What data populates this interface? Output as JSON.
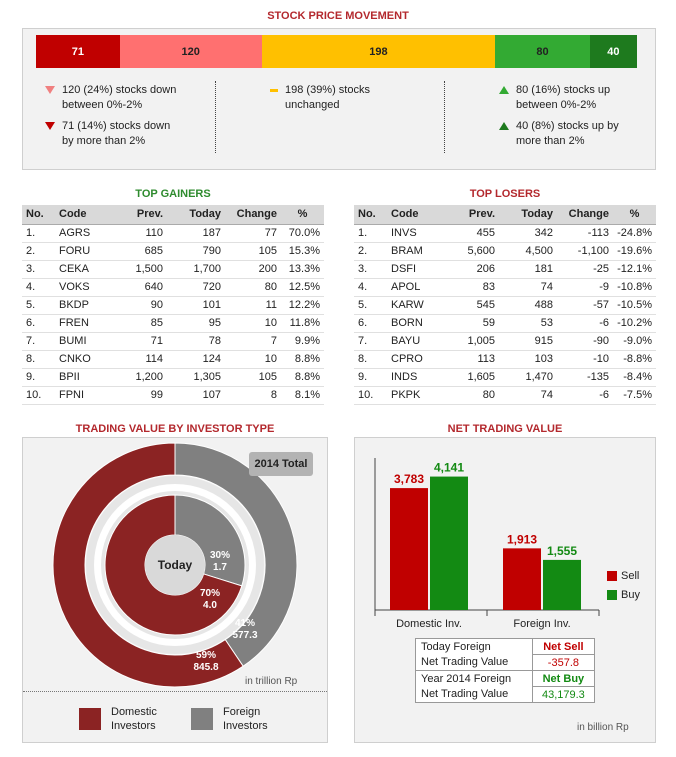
{
  "spm": {
    "title": "STOCK PRICE MOVEMENT",
    "segments": [
      {
        "value": 71,
        "label": "71",
        "color": "#c00000",
        "light": true
      },
      {
        "value": 120,
        "label": "120",
        "color": "#ff7070",
        "light": false
      },
      {
        "value": 198,
        "label": "198",
        "color": "#ffc000",
        "light": false
      },
      {
        "value": 80,
        "label": "80",
        "color": "#33aa33",
        "light": false
      },
      {
        "value": 40,
        "label": "40",
        "color": "#1e7a1e",
        "light": true
      }
    ],
    "down_small_l1": "120 (24%) stocks down",
    "down_small_l2": "between 0%-2%",
    "down_big_l1": "71 (14%) stocks down",
    "down_big_l2": "by more than 2%",
    "unch_l1": "198 (39%) stocks",
    "unch_l2": "unchanged",
    "up_small_l1": "80 (16%) stocks up",
    "up_small_l2": "between 0%-2%",
    "up_big_l1": "40 (8%) stocks up by",
    "up_big_l2": "more than 2%"
  },
  "gainers": {
    "title": "TOP GAINERS",
    "headers": [
      "No.",
      "Code",
      "Prev.",
      "Today",
      "Change",
      "%"
    ],
    "rows": [
      [
        "1.",
        "AGRS",
        "110",
        "187",
        "77",
        "70.0%"
      ],
      [
        "2.",
        "FORU",
        "685",
        "790",
        "105",
        "15.3%"
      ],
      [
        "3.",
        "CEKA",
        "1,500",
        "1,700",
        "200",
        "13.3%"
      ],
      [
        "4.",
        "VOKS",
        "640",
        "720",
        "80",
        "12.5%"
      ],
      [
        "5.",
        "BKDP",
        "90",
        "101",
        "11",
        "12.2%"
      ],
      [
        "6.",
        "FREN",
        "85",
        "95",
        "10",
        "11.8%"
      ],
      [
        "7.",
        "BUMI",
        "71",
        "78",
        "7",
        "9.9%"
      ],
      [
        "8.",
        "CNKO",
        "114",
        "124",
        "10",
        "8.8%"
      ],
      [
        "9.",
        "BPII",
        "1,200",
        "1,305",
        "105",
        "8.8%"
      ],
      [
        "10.",
        "FPNI",
        "99",
        "107",
        "8",
        "8.1%"
      ]
    ]
  },
  "losers": {
    "title": "TOP LOSERS",
    "headers": [
      "No.",
      "Code",
      "Prev.",
      "Today",
      "Change",
      "%"
    ],
    "rows": [
      [
        "1.",
        "INVS",
        "455",
        "342",
        "-113",
        "-24.8%"
      ],
      [
        "2.",
        "BRAM",
        "5,600",
        "4,500",
        "-1,100",
        "-19.6%"
      ],
      [
        "3.",
        "DSFI",
        "206",
        "181",
        "-25",
        "-12.1%"
      ],
      [
        "4.",
        "APOL",
        "83",
        "74",
        "-9",
        "-10.8%"
      ],
      [
        "5.",
        "KARW",
        "545",
        "488",
        "-57",
        "-10.5%"
      ],
      [
        "6.",
        "BORN",
        "59",
        "53",
        "-6",
        "-10.2%"
      ],
      [
        "7.",
        "BAYU",
        "1,005",
        "915",
        "-90",
        "-9.0%"
      ],
      [
        "8.",
        "CPRO",
        "113",
        "103",
        "-10",
        "-8.8%"
      ],
      [
        "9.",
        "INDS",
        "1,605",
        "1,470",
        "-135",
        "-8.4%"
      ],
      [
        "10.",
        "PKPK",
        "80",
        "74",
        "-6",
        "-7.5%"
      ]
    ]
  },
  "trading_value": {
    "title": "TRADING VALUE BY INVESTOR TYPE",
    "total_label": "2014 Total",
    "today_label": "Today",
    "unit": "in trillion Rp",
    "legend_domestic_l1": "Domestic",
    "legend_domestic_l2": "Investors",
    "legend_foreign_l1": "Foreign",
    "legend_foreign_l2": "Investors",
    "colors": {
      "domestic": "#8b2323",
      "foreign": "#808080"
    }
  },
  "net_trading": {
    "title": "NET TRADING VALUE",
    "unit": "in billion Rp",
    "legend_sell": "Sell",
    "legend_buy": "Buy",
    "colors": {
      "sell": "#c00000",
      "buy": "#138a13"
    },
    "table": {
      "today_l1": "Today Foreign",
      "today_l2": "Net Trading Value",
      "today_tag": "Net Sell",
      "today_value": "-357.8",
      "year_l1": "Year 2014 Foreign",
      "year_l2": "Net Trading Value",
      "year_tag": "Net Buy",
      "year_value": "43,179.3"
    }
  },
  "chart_data": [
    {
      "type": "bar",
      "title": "STOCK PRICE MOVEMENT",
      "stacked": true,
      "series": [
        {
          "name": "stocks down by more than 2%",
          "values": [
            71
          ]
        },
        {
          "name": "stocks down between 0%-2%",
          "values": [
            120
          ]
        },
        {
          "name": "stocks unchanged",
          "values": [
            198
          ]
        },
        {
          "name": "stocks up between 0%-2%",
          "values": [
            80
          ]
        },
        {
          "name": "stocks up by more than 2%",
          "values": [
            40
          ]
        }
      ]
    },
    {
      "type": "pie",
      "title": "TRADING VALUE BY INVESTOR TYPE",
      "rings": [
        {
          "label": "2014 Total",
          "slices": [
            {
              "name": "Domestic Investors",
              "value": 845.8,
              "percent": "59%"
            },
            {
              "name": "Foreign Investors",
              "value": 577.3,
              "percent": "41%"
            }
          ]
        },
        {
          "label": "Today",
          "slices": [
            {
              "name": "Domestic Investors",
              "value": 4.0,
              "percent": "70%"
            },
            {
              "name": "Foreign Investors",
              "value": 1.7,
              "percent": "30%"
            }
          ]
        }
      ],
      "legend": "bottom"
    },
    {
      "type": "bar",
      "title": "NET TRADING VALUE",
      "categories": [
        "Domestic Inv.",
        "Foreign Inv."
      ],
      "series": [
        {
          "name": "Sell",
          "values": [
            3783,
            1913
          ]
        },
        {
          "name": "Buy",
          "values": [
            4141,
            1555
          ]
        }
      ],
      "value_labels": [
        [
          "3,783",
          "1,913"
        ],
        [
          "4,141",
          "1,555"
        ]
      ],
      "legend": "right"
    }
  ]
}
